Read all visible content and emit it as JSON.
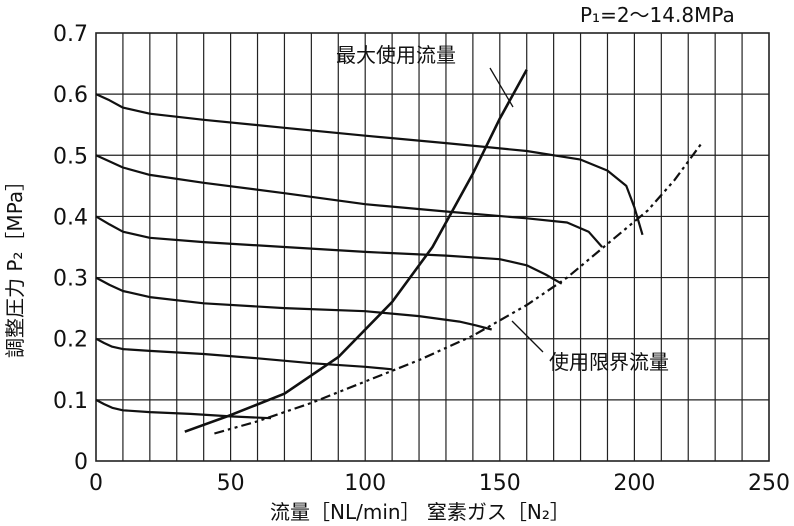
{
  "chart_data": {
    "type": "line",
    "condition_label": "P₁=2〜14.8MPa",
    "xlabel": "流量［NL/min］ 窒素ガス［N₂］",
    "ylabel": "調整圧力 P₂［MPa］",
    "xlim": [
      0,
      250
    ],
    "ylim": [
      0,
      0.7
    ],
    "x_ticks": [
      "0",
      "50",
      "100",
      "150",
      "200",
      "250"
    ],
    "y_ticks": [
      "0",
      "0.1",
      "0.2",
      "0.3",
      "0.4",
      "0.5",
      "0.6",
      "0.7"
    ],
    "grid": true,
    "series": [
      {
        "x": [
          0,
          5,
          10,
          20,
          40,
          70,
          100,
          130,
          160,
          180,
          190,
          197,
          200,
          203
        ],
        "y": [
          0.6,
          0.59,
          0.578,
          0.568,
          0.558,
          0.545,
          0.532,
          0.52,
          0.507,
          0.493,
          0.475,
          0.45,
          0.415,
          0.37
        ]
      },
      {
        "x": [
          0,
          5,
          10,
          20,
          40,
          70,
          100,
          130,
          160,
          175,
          183,
          188
        ],
        "y": [
          0.5,
          0.49,
          0.48,
          0.468,
          0.455,
          0.438,
          0.42,
          0.408,
          0.397,
          0.39,
          0.375,
          0.35
        ]
      },
      {
        "x": [
          0,
          5,
          10,
          20,
          40,
          70,
          100,
          130,
          150,
          160,
          167,
          173
        ],
        "y": [
          0.4,
          0.387,
          0.375,
          0.365,
          0.358,
          0.35,
          0.342,
          0.336,
          0.33,
          0.32,
          0.305,
          0.29
        ]
      },
      {
        "x": [
          0,
          5,
          10,
          20,
          40,
          70,
          100,
          120,
          135,
          141,
          147
        ],
        "y": [
          0.3,
          0.288,
          0.278,
          0.268,
          0.258,
          0.25,
          0.245,
          0.237,
          0.228,
          0.222,
          0.215
        ]
      },
      {
        "x": [
          0,
          3,
          6,
          10,
          20,
          40,
          60,
          80,
          100,
          110
        ],
        "y": [
          0.2,
          0.193,
          0.187,
          0.183,
          0.18,
          0.175,
          0.168,
          0.16,
          0.154,
          0.15
        ]
      },
      {
        "x": [
          0,
          3,
          6,
          10,
          20,
          35,
          50,
          65
        ],
        "y": [
          0.1,
          0.093,
          0.087,
          0.083,
          0.08,
          0.077,
          0.073,
          0.07
        ]
      }
    ],
    "annotations": [
      {
        "text": "最大使用流量",
        "x": [
          33,
          50,
          70,
          90,
          110,
          125,
          140,
          150,
          160
        ],
        "y": [
          0.048,
          0.075,
          0.11,
          0.17,
          0.26,
          0.35,
          0.47,
          0.56,
          0.64
        ]
      },
      {
        "text": "使用限界流量",
        "x": [
          44,
          60,
          80,
          100,
          120,
          140,
          160,
          175,
          190,
          205,
          215,
          225
        ],
        "y": [
          0.045,
          0.065,
          0.095,
          0.13,
          0.165,
          0.205,
          0.255,
          0.3,
          0.355,
          0.41,
          0.46,
          0.52
        ]
      }
    ]
  }
}
